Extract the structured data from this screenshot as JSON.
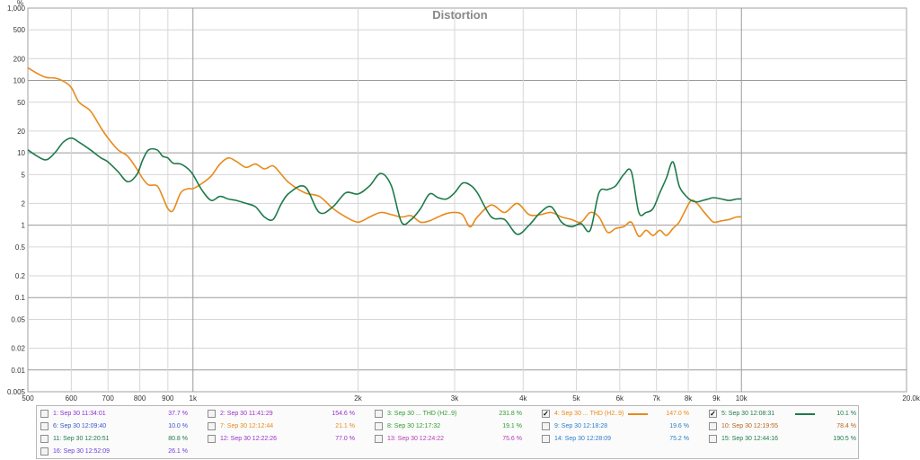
{
  "chart_data": {
    "type": "line",
    "title": "Distortion",
    "ylabel": "%",
    "xlabel": "",
    "xscale": "log",
    "yscale": "log",
    "xlim": [
      500,
      20000
    ],
    "ylim": [
      0.005,
      1000
    ],
    "y_ticks": [
      {
        "v": 1000,
        "label": "1,000"
      },
      {
        "v": 500,
        "label": "500"
      },
      {
        "v": 200,
        "label": "200"
      },
      {
        "v": 100,
        "label": "100"
      },
      {
        "v": 50,
        "label": "50"
      },
      {
        "v": 20,
        "label": "20"
      },
      {
        "v": 10,
        "label": "10"
      },
      {
        "v": 5,
        "label": "5"
      },
      {
        "v": 2,
        "label": "2"
      },
      {
        "v": 1,
        "label": "1"
      },
      {
        "v": 0.5,
        "label": "0.5"
      },
      {
        "v": 0.2,
        "label": "0.2"
      },
      {
        "v": 0.1,
        "label": "0.1"
      },
      {
        "v": 0.05,
        "label": "0.05"
      },
      {
        "v": 0.02,
        "label": "0.02"
      },
      {
        "v": 0.01,
        "label": "0.01"
      },
      {
        "v": 0.005,
        "label": "0.005"
      }
    ],
    "x_ticks": [
      {
        "v": 500,
        "label": "500"
      },
      {
        "v": 600,
        "label": "600"
      },
      {
        "v": 700,
        "label": "700"
      },
      {
        "v": 800,
        "label": "800"
      },
      {
        "v": 900,
        "label": "900"
      },
      {
        "v": 1000,
        "label": "1k"
      },
      {
        "v": 2000,
        "label": "2k"
      },
      {
        "v": 3000,
        "label": "3k"
      },
      {
        "v": 4000,
        "label": "4k"
      },
      {
        "v": 5000,
        "label": "5k"
      },
      {
        "v": 6000,
        "label": "6k"
      },
      {
        "v": 7000,
        "label": "7k"
      },
      {
        "v": 8000,
        "label": "8k"
      },
      {
        "v": 9000,
        "label": "9k"
      },
      {
        "v": 10000,
        "label": "10k"
      },
      {
        "v": 20000,
        "label": "20.0kHz"
      }
    ],
    "series": [
      {
        "name": "4: Sep 30 ... THD (H2..9)",
        "color": "#e88a1a",
        "x": [
          500,
          520,
          540,
          560,
          580,
          600,
          620,
          650,
          680,
          700,
          730,
          760,
          790,
          810,
          830,
          860,
          880,
          900,
          920,
          950,
          980,
          1000,
          1040,
          1080,
          1120,
          1160,
          1200,
          1250,
          1300,
          1350,
          1400,
          1450,
          1500,
          1600,
          1700,
          1800,
          1900,
          2000,
          2100,
          2200,
          2300,
          2400,
          2500,
          2600,
          2700,
          2800,
          2900,
          3000,
          3100,
          3200,
          3300,
          3500,
          3700,
          3900,
          4100,
          4300,
          4500,
          4700,
          4900,
          5100,
          5300,
          5500,
          5700,
          5900,
          6100,
          6300,
          6500,
          6700,
          6900,
          7100,
          7300,
          7500,
          7700,
          7900,
          8100,
          8300,
          8500,
          8700,
          8900,
          9200,
          9500,
          9800,
          10000
        ],
        "y": [
          150,
          125,
          110,
          108,
          98,
          80,
          50,
          38,
          22,
          16,
          11,
          9,
          6,
          4.4,
          3.6,
          3.5,
          2.5,
          1.7,
          1.6,
          2.8,
          3.2,
          3.2,
          3.8,
          4.8,
          7,
          8.5,
          7.6,
          6.3,
          7,
          6,
          6.6,
          5,
          3.8,
          2.8,
          2.5,
          1.7,
          1.3,
          1.1,
          1.3,
          1.5,
          1.4,
          1.3,
          1.35,
          1.1,
          1.15,
          1.3,
          1.45,
          1.5,
          1.4,
          0.95,
          1.3,
          1.9,
          1.5,
          2,
          1.4,
          1.4,
          1.5,
          1.3,
          1.2,
          1.1,
          1.5,
          1.3,
          0.8,
          0.9,
          0.95,
          1.1,
          0.7,
          0.85,
          0.72,
          0.85,
          0.72,
          0.9,
          1.1,
          1.6,
          2.2,
          2,
          1.6,
          1.3,
          1.1,
          1.15,
          1.2,
          1.3,
          1.3
        ]
      },
      {
        "name": "5: Sep 30 12:08:31",
        "color": "#1e7a4a",
        "x": [
          500,
          520,
          540,
          560,
          580,
          600,
          620,
          650,
          680,
          700,
          730,
          760,
          790,
          810,
          830,
          860,
          880,
          900,
          920,
          950,
          980,
          1000,
          1040,
          1080,
          1120,
          1160,
          1200,
          1250,
          1300,
          1350,
          1400,
          1450,
          1500,
          1600,
          1700,
          1800,
          1900,
          2000,
          2100,
          2200,
          2300,
          2400,
          2500,
          2600,
          2700,
          2800,
          2900,
          3000,
          3100,
          3200,
          3300,
          3500,
          3700,
          3900,
          4100,
          4300,
          4500,
          4700,
          4900,
          5100,
          5300,
          5500,
          5700,
          5900,
          6100,
          6300,
          6500,
          6700,
          6900,
          7100,
          7300,
          7500,
          7700,
          7900,
          8100,
          8300,
          8500,
          8700,
          8900,
          9200,
          9500,
          9800,
          10000
        ],
        "y": [
          11,
          9,
          8,
          10,
          14,
          16,
          14,
          11,
          8.5,
          7.5,
          5.5,
          4,
          5,
          8,
          11,
          11,
          9,
          8.5,
          7.2,
          7,
          6,
          5,
          3,
          2.2,
          2.5,
          2.3,
          2.2,
          2,
          1.8,
          1.3,
          1.2,
          2,
          2.8,
          3.4,
          1.5,
          1.8,
          2.8,
          2.7,
          3.5,
          5.2,
          3.5,
          1.1,
          1.2,
          1.7,
          2.7,
          2.4,
          2.3,
          2.8,
          3.8,
          3.6,
          2.8,
          1.3,
          1.2,
          0.75,
          1,
          1.5,
          1.8,
          1.1,
          0.95,
          1.05,
          0.85,
          2.8,
          3.1,
          3.5,
          5,
          5.5,
          1.5,
          1.5,
          1.7,
          2.8,
          4.5,
          7.5,
          3.5,
          2.6,
          2.2,
          2.1,
          2.2,
          2.3,
          2.4,
          2.3,
          2.2,
          2.3,
          2.3
        ]
      }
    ],
    "legend_placement": "bottom",
    "grid": true
  },
  "legend": {
    "items": [
      {
        "label": "1: Sep 30 11:34:01",
        "value": "37.7 %",
        "color": "#8b2fd6",
        "checked": false
      },
      {
        "label": "2: Sep 30 11:41:29",
        "value": "154.6 %",
        "color": "#9b30c9",
        "checked": false
      },
      {
        "label": "3: Sep 30 ... THD (H2..9)",
        "value": "231.8 %",
        "color": "#2f9a2f",
        "checked": false
      },
      {
        "label": "4: Sep 30 ... THD (H2..9)",
        "value": "147.0 %",
        "color": "#e88a1a",
        "checked": true
      },
      {
        "label": "5: Sep 30 12:08:31",
        "value": "10.1 %",
        "color": "#1e7a4a",
        "checked": true
      },
      {
        "label": "6: Sep 30 12:09:40",
        "value": "10.0 %",
        "color": "#3b55c9",
        "checked": false
      },
      {
        "label": "7: Sep 30 12:12:44",
        "value": "21.1 %",
        "color": "#e88a1a",
        "checked": false
      },
      {
        "label": "8: Sep 30 12:17:32",
        "value": "19.1 %",
        "color": "#2f9a2f",
        "checked": false
      },
      {
        "label": "9: Sep 30 12:18:28",
        "value": "19.6 %",
        "color": "#2a7ec9",
        "checked": false
      },
      {
        "label": "10: Sep 30 12:19:55",
        "value": "78.4 %",
        "color": "#b8641f",
        "checked": false
      },
      {
        "label": "11: Sep 30 12:20:51",
        "value": "80.8 %",
        "color": "#1e7a4a",
        "checked": false
      },
      {
        "label": "12: Sep 30 12:22:26",
        "value": "77.0 %",
        "color": "#9b30c9",
        "checked": false
      },
      {
        "label": "13: Sep 30 12:24:22",
        "value": "75.6 %",
        "color": "#b83ab8",
        "checked": false
      },
      {
        "label": "14: Sep 30 12:28:09",
        "value": "75.2 %",
        "color": "#2a7ec9",
        "checked": false
      },
      {
        "label": "15: Sep 30 12:44:16",
        "value": "190.5 %",
        "color": "#1e7a4a",
        "checked": false
      },
      {
        "label": "16: Sep 30 12:52:09",
        "value": "26.1 %",
        "color": "#6a3dd6",
        "checked": false
      }
    ]
  }
}
